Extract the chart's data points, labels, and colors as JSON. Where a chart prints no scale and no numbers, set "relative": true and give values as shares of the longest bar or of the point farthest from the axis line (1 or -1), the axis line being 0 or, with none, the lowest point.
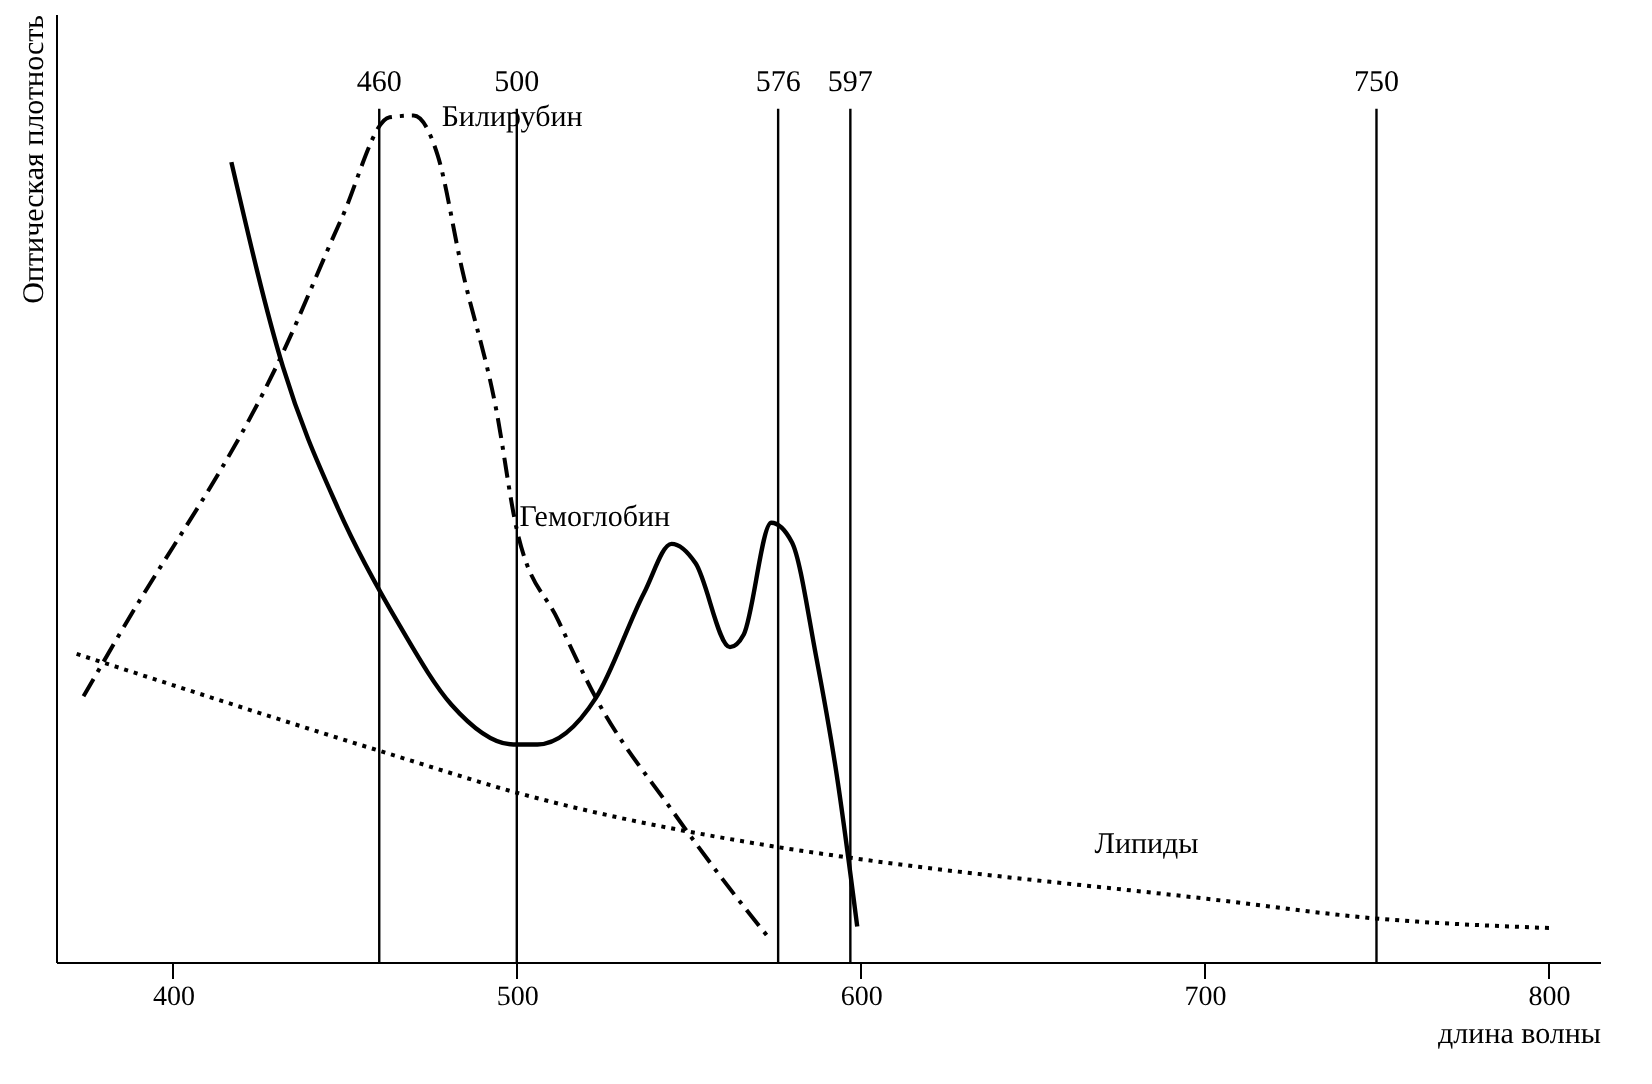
{
  "chart_data": {
    "type": "line",
    "relative": true,
    "xlabel": "длина волны",
    "ylabel": "Оптическая плотность",
    "xlim": [
      366,
      815
    ],
    "xticks": [
      400,
      500,
      600,
      700,
      800
    ],
    "marker": "none",
    "series": [
      {
        "name": "Билирубин",
        "color": "#000000",
        "line_style": "dashed",
        "x": [
          374,
          384,
          432,
          449,
          463,
          470,
          477,
          484,
          494,
          500,
          512,
          523,
          545,
          560,
          574
        ],
        "values": [
          0.314,
          0.384,
          0.72,
          0.878,
          0.998,
          1.0,
          0.953,
          0.82,
          0.653,
          0.511,
          0.404,
          0.312,
          0.18,
          0.097,
          0.025
        ]
      },
      {
        "name": "Гемоглобин",
        "color": "#000000",
        "line_style": "solid",
        "x": [
          417,
          432,
          448,
          466,
          481,
          499,
          506,
          523,
          537,
          545,
          552,
          562,
          566,
          574,
          580,
          587,
          593,
          599
        ],
        "values": [
          0.945,
          0.703,
          0.536,
          0.397,
          0.304,
          0.257,
          0.257,
          0.312,
          0.436,
          0.494,
          0.471,
          0.372,
          0.387,
          0.519,
          0.496,
          0.362,
          0.222,
          0.042
        ]
      },
      {
        "name": "Липиды",
        "color": "#000000",
        "line_style": "dotted",
        "x": [
          372,
          466,
          500,
          574,
          599,
          700,
          751,
          801
        ],
        "values": [
          0.364,
          0.242,
          0.2,
          0.137,
          0.122,
          0.075,
          0.051,
          0.04
        ]
      }
    ],
    "ref_lines": [
      {
        "axis": "x",
        "value": 460,
        "label": "460"
      },
      {
        "axis": "x",
        "value": 500,
        "label": "500"
      },
      {
        "axis": "x",
        "value": 576,
        "label": "576"
      },
      {
        "axis": "x",
        "value": 597,
        "label": "597"
      },
      {
        "axis": "x",
        "value": 750,
        "label": "750"
      }
    ]
  }
}
